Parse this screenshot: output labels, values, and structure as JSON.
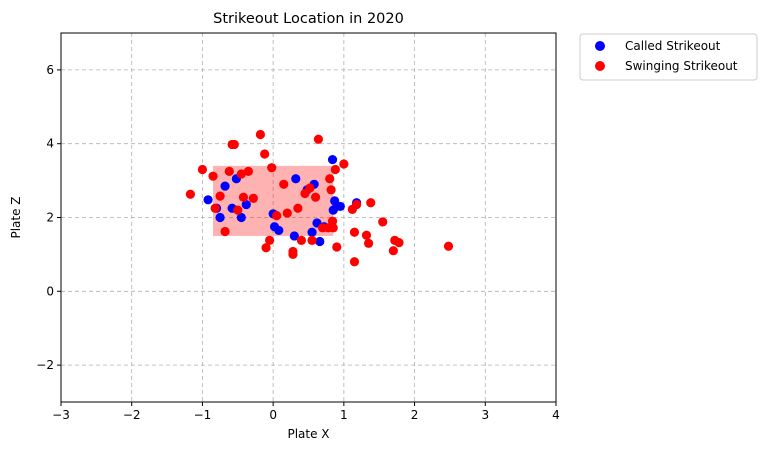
{
  "chart_data": {
    "type": "scatter",
    "title": "Strikeout Location in 2020",
    "xlabel": "Plate X",
    "ylabel": "Plate Z",
    "xlim": [
      -3,
      4
    ],
    "ylim": [
      -3,
      7
    ],
    "xticks": [
      -3,
      -2,
      -1,
      0,
      1,
      2,
      3,
      4
    ],
    "yticks": [
      -2,
      0,
      2,
      4,
      6
    ],
    "grid": true,
    "legend_position": "outside-top-right",
    "strike_zone": {
      "x": [
        -0.85,
        0.85
      ],
      "z": [
        1.5,
        3.4
      ],
      "color": "#ff0000",
      "opacity": 0.3
    },
    "series": [
      {
        "name": "Called Strikeout",
        "color": "#0000ff",
        "points": [
          [
            -0.92,
            2.48
          ],
          [
            -0.8,
            2.25
          ],
          [
            -0.75,
            2.0
          ],
          [
            -0.68,
            2.85
          ],
          [
            -0.58,
            2.25
          ],
          [
            -0.52,
            3.05
          ],
          [
            -0.45,
            2.0
          ],
          [
            -0.38,
            2.35
          ],
          [
            0.0,
            2.1
          ],
          [
            0.02,
            1.75
          ],
          [
            0.08,
            1.65
          ],
          [
            0.3,
            1.5
          ],
          [
            0.32,
            3.05
          ],
          [
            0.48,
            2.75
          ],
          [
            0.55,
            1.6
          ],
          [
            0.58,
            2.9
          ],
          [
            0.62,
            1.85
          ],
          [
            0.66,
            1.35
          ],
          [
            0.72,
            1.75
          ],
          [
            0.84,
            3.57
          ],
          [
            0.85,
            2.2
          ],
          [
            0.87,
            2.45
          ],
          [
            0.9,
            2.3
          ],
          [
            0.95,
            2.3
          ],
          [
            1.18,
            2.4
          ]
        ]
      },
      {
        "name": "Swinging Strikeout",
        "color": "#ff0000",
        "points": [
          [
            -1.17,
            2.63
          ],
          [
            -1.0,
            3.3
          ],
          [
            -0.85,
            3.12
          ],
          [
            -0.82,
            2.25
          ],
          [
            -0.75,
            2.58
          ],
          [
            -0.68,
            1.62
          ],
          [
            -0.62,
            3.25
          ],
          [
            -0.58,
            3.98
          ],
          [
            -0.55,
            3.98
          ],
          [
            -0.5,
            2.2
          ],
          [
            -0.45,
            3.18
          ],
          [
            -0.42,
            2.55
          ],
          [
            -0.35,
            3.25
          ],
          [
            -0.28,
            2.52
          ],
          [
            -0.18,
            4.25
          ],
          [
            -0.12,
            3.72
          ],
          [
            -0.1,
            1.18
          ],
          [
            -0.05,
            1.38
          ],
          [
            -0.02,
            3.35
          ],
          [
            0.05,
            2.05
          ],
          [
            0.15,
            2.9
          ],
          [
            0.2,
            2.12
          ],
          [
            0.28,
            1.0
          ],
          [
            0.28,
            1.08
          ],
          [
            0.35,
            2.25
          ],
          [
            0.4,
            1.38
          ],
          [
            0.45,
            2.65
          ],
          [
            0.52,
            2.8
          ],
          [
            0.55,
            1.38
          ],
          [
            0.6,
            2.55
          ],
          [
            0.64,
            4.12
          ],
          [
            0.7,
            1.72
          ],
          [
            0.78,
            1.72
          ],
          [
            0.8,
            3.05
          ],
          [
            0.82,
            2.75
          ],
          [
            0.84,
            1.9
          ],
          [
            0.85,
            1.72
          ],
          [
            0.88,
            3.3
          ],
          [
            0.9,
            1.2
          ],
          [
            1.0,
            3.45
          ],
          [
            1.12,
            2.22
          ],
          [
            1.15,
            1.6
          ],
          [
            1.15,
            0.8
          ],
          [
            1.18,
            2.35
          ],
          [
            1.32,
            1.52
          ],
          [
            1.35,
            1.3
          ],
          [
            1.38,
            2.4
          ],
          [
            1.55,
            1.88
          ],
          [
            1.7,
            1.1
          ],
          [
            1.72,
            1.38
          ],
          [
            1.78,
            1.32
          ],
          [
            2.48,
            1.22
          ]
        ]
      }
    ]
  }
}
